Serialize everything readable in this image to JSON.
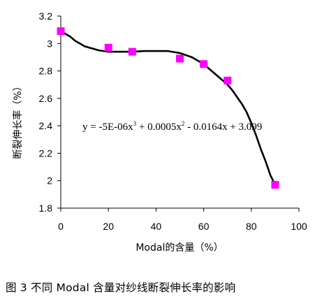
{
  "chart_data": {
    "type": "scatter",
    "xlabel": "Modal的含量（%）",
    "ylabel": "断裂伸长率（%）",
    "xlim": [
      0,
      100
    ],
    "ylim": [
      1.8,
      3.2
    ],
    "x_ticks": [
      "0",
      "20",
      "40",
      "60",
      "80",
      "100"
    ],
    "y_ticks": [
      "1.8",
      "2",
      "2.2",
      "2.4",
      "2.6",
      "2.8",
      "3",
      "3.2"
    ],
    "grid": false,
    "legend": "none",
    "series": [
      {
        "marker": "square",
        "color": "#ff00ff",
        "points": [
          {
            "x": 0,
            "y": 3.09
          },
          {
            "x": 20,
            "y": 2.97
          },
          {
            "x": 30,
            "y": 2.94
          },
          {
            "x": 50,
            "y": 2.89
          },
          {
            "x": 60,
            "y": 2.85
          },
          {
            "x": 70,
            "y": 2.73
          },
          {
            "x": 90,
            "y": 1.97
          }
        ]
      }
    ],
    "trendline": {
      "color": "#000000",
      "x": [
        0,
        2,
        4,
        6,
        8,
        10,
        12,
        14,
        16,
        18,
        20,
        25,
        30,
        35,
        40,
        45,
        50,
        55,
        60,
        62,
        64,
        66,
        68,
        70,
        72,
        74,
        76,
        78,
        80,
        82,
        84,
        86,
        88,
        90
      ],
      "y": [
        3.09,
        3.07,
        3.05,
        3.02,
        3.0,
        2.98,
        2.97,
        2.96,
        2.95,
        2.945,
        2.94,
        2.94,
        2.94,
        2.945,
        2.945,
        2.945,
        2.93,
        2.9,
        2.85,
        2.82,
        2.79,
        2.76,
        2.73,
        2.7,
        2.66,
        2.61,
        2.56,
        2.5,
        2.42,
        2.33,
        2.23,
        2.14,
        2.04,
        1.97
      ],
      "equation": {
        "prefix": "y = -5E-06x",
        "sup1": "3",
        "mid": " + 0.0005x",
        "sup2": "2",
        "suffix": " - 0.0164x + 3.099"
      }
    }
  },
  "caption": "图 3  不同 Modal 含量对纱线断裂伸长率的影响"
}
